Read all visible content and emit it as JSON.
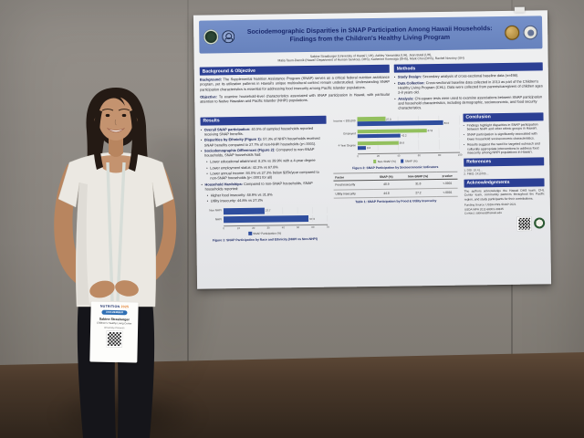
{
  "scene": {
    "setting": "conference hallway wall with research poster and presenter",
    "colors": {
      "wall": "#8f8b85",
      "floor": "#4a3a2e",
      "poster_bg": "#ededee",
      "poster_header_bar": "#6d87c3",
      "section_header": "#2b3f94",
      "title_text": "#18276b",
      "snap_bar": "#2e4d9e",
      "non_snap_bar": "#93c05e"
    }
  },
  "person": {
    "description": "smiling woman with long dark hair, white short-sleeve knit top, black pants, wearing a conference lanyard badge",
    "badge": {
      "event_name": "NUTRITION",
      "event_year": "2025",
      "ribbon": "ASN MEMBER",
      "name": "Sabine Strasburger",
      "org": "Children's Healthy Living Center",
      "affiliation": "University of Hawai'i"
    }
  },
  "poster": {
    "title_line1": "Sociodemographic Disparities in SNAP Participation Among Hawaii Households:",
    "title_line2": "Findings from the Children's Healthy Living Program",
    "authors_line1": "Sabine Strasburger (University of Hawai'i, UH), Ashley Yamanaka (UH), Jean Butel (UH),",
    "authors_line2": "Malia Taum-Dannik (Hawai'i Department of Human Services, DHS), Katherine Korenaga (DHS), Mark Choi (DHS), Rachel Novotny (UH)",
    "background": {
      "heading": "Background & Objective",
      "items": [
        {
          "lead": "Background:",
          "text": "The Supplemental Nutrition Assistance Program (SNAP) serves as a critical federal nutrition assistance program, yet its utilization patterns in Hawaii's unique multicultural context remain understudied. Understanding SNAP participation characteristics is essential for addressing food insecurity among Pacific Islander populations.",
          "subs": []
        },
        {
          "lead": "Objective:",
          "text": "To examine household-level characteristics associated with SNAP participation in Hawaii, with particular attention to Native Hawaiian and Pacific Islander (NHPI) populations.",
          "subs": []
        }
      ]
    },
    "methods": {
      "heading": "Methods",
      "items": [
        {
          "lead": "Study Design:",
          "text": "Secondary analysis of cross-sectional baseline data (n=498).",
          "subs": []
        },
        {
          "lead": "Data Collection:",
          "text": "Cross-sectional baseline data collected in 2013 as part of the Children's Healthy Living Program (CHL). Data were collected from parents/caregivers of children ages 2-8 years old.",
          "subs": []
        },
        {
          "lead": "Analysis:",
          "text": "Chi-square tests were used to examine associations between SNAP participation and household characteristics, including demographic, socioeconomic, and food security characteristics.",
          "subs": []
        }
      ]
    },
    "results": {
      "heading": "Results",
      "items": [
        {
          "lead": "Overall SNAP participation:",
          "text": "40.5% of sampled households reported receiving SNAP benefits.",
          "subs": []
        },
        {
          "lead": "Disparities by Ethnicity (Figure 1):",
          "text": "57.3% of NHPI households received SNAP benefits compared to 27.7% of non-NHPI households (p<.0001).",
          "subs": []
        },
        {
          "lead": "Sociodemographic Differences (Figure 2):",
          "text": "Compared to non-SNAP households, SNAP households had:",
          "subs": [
            "Lower educational attainment: 8.2% vs 39.9% with a 4-year degree",
            "Lower employment status: 42.2% vs 67.8%",
            "Lower annual income: 84.0% vs 27.3% below $35k/year compared to non-SNAP households (p<.0001 for all)"
          ]
        },
        {
          "lead": "Household Hardships:",
          "text": "Compared to non-SNAP households, SNAP households reported:",
          "subs": [
            "Higher food insecurity: 48.9% vs 31.8%",
            "Utility insecurity: 44.8% vs 27.2%"
          ]
        }
      ]
    },
    "conclusion": {
      "heading": "Conclusion",
      "items": [
        {
          "lead": "",
          "text": "Findings highlight disparities in SNAP participation between NHPI and other ethnic groups in Hawai'i.",
          "subs": []
        },
        {
          "lead": "",
          "text": "SNAP participation is significantly associated with lower household socioeconomic characteristics.",
          "subs": []
        },
        {
          "lead": "",
          "text": "Results suggest the need for targeted outreach and culturally appropriate interventions to address food insecurity among NHPI populations in Hawai'i.",
          "subs": []
        }
      ]
    },
    "references": {
      "heading": "References",
      "items": [
        "1. DOI: 10.41…",
        "2. PMID: 2410705…"
      ]
    },
    "acknowledgements": {
      "heading": "Acknowledgements",
      "text": "The authors acknowledge the Hawaii DHS team, CHL Center team, community partners throughout the Pacific region, and study participants for their contributions.",
      "funding_line1": "Funding Source: USDA-FNS-SNAP-2021",
      "funding_line2": "USDA NIFA 2011-68001-30335",
      "contact": "Contact: sabines@hawaii.edu"
    },
    "figure1_caption": "Figure 1: SNAP Participation by Race and Ethnicity (NHPI vs Non-NHPI)",
    "figure2_caption": "Figure 2: SNAP Participation by Socioeconomic Indicators",
    "table1_caption": "Table 1: SNAP Participation by Food & Utility Insecurity"
  },
  "chart_data": [
    {
      "id": "figure1",
      "type": "bar",
      "orientation": "horizontal",
      "title": "Figure 1: SNAP Participation by Race and Ethnicity (NHPI vs Non-NHPI)",
      "categories": [
        "Non NHPI",
        "NHPI"
      ],
      "values": [
        27.7,
        57.3
      ],
      "xlim": [
        0,
        70
      ],
      "xticks": [
        0,
        10,
        20,
        30,
        40,
        50,
        60,
        70
      ],
      "tick_step": 10,
      "legend": [
        "SNAP Participation (%)"
      ],
      "bar_color": "#2e4d9e",
      "grid": true,
      "legend_position": "bottom"
    },
    {
      "id": "figure2",
      "type": "bar",
      "orientation": "horizontal",
      "title": "Figure 2: SNAP Participation by Socioeconomic Indicators",
      "categories": [
        "Income < $35,000",
        "Employed",
        "4-Year Degree"
      ],
      "series": [
        {
          "name": "Non-SNAP (%)",
          "color": "#93c05e",
          "values": [
            27.3,
            67.8,
            39.9
          ]
        },
        {
          "name": "SNAP (%)",
          "color": "#2e4d9e",
          "values": [
            84.0,
            42.2,
            8.2
          ]
        }
      ],
      "xlim": [
        0,
        100
      ],
      "xticks": [
        0,
        20,
        40,
        60,
        80,
        100
      ],
      "tick_step": 20,
      "grid": true,
      "legend_position": "bottom"
    },
    {
      "id": "table1",
      "type": "table",
      "title": "Table 1: SNAP Participation by Food & Utility Insecurity",
      "columns": [
        "Factor",
        "SNAP (%)",
        "Non-SNAP (%)",
        "p-value"
      ],
      "rows": [
        [
          "Food Insecurity",
          "48.9",
          "31.8",
          "<.0001"
        ],
        [
          "Utility Insecurity",
          "44.8",
          "27.2",
          "<.0001"
        ]
      ]
    }
  ]
}
